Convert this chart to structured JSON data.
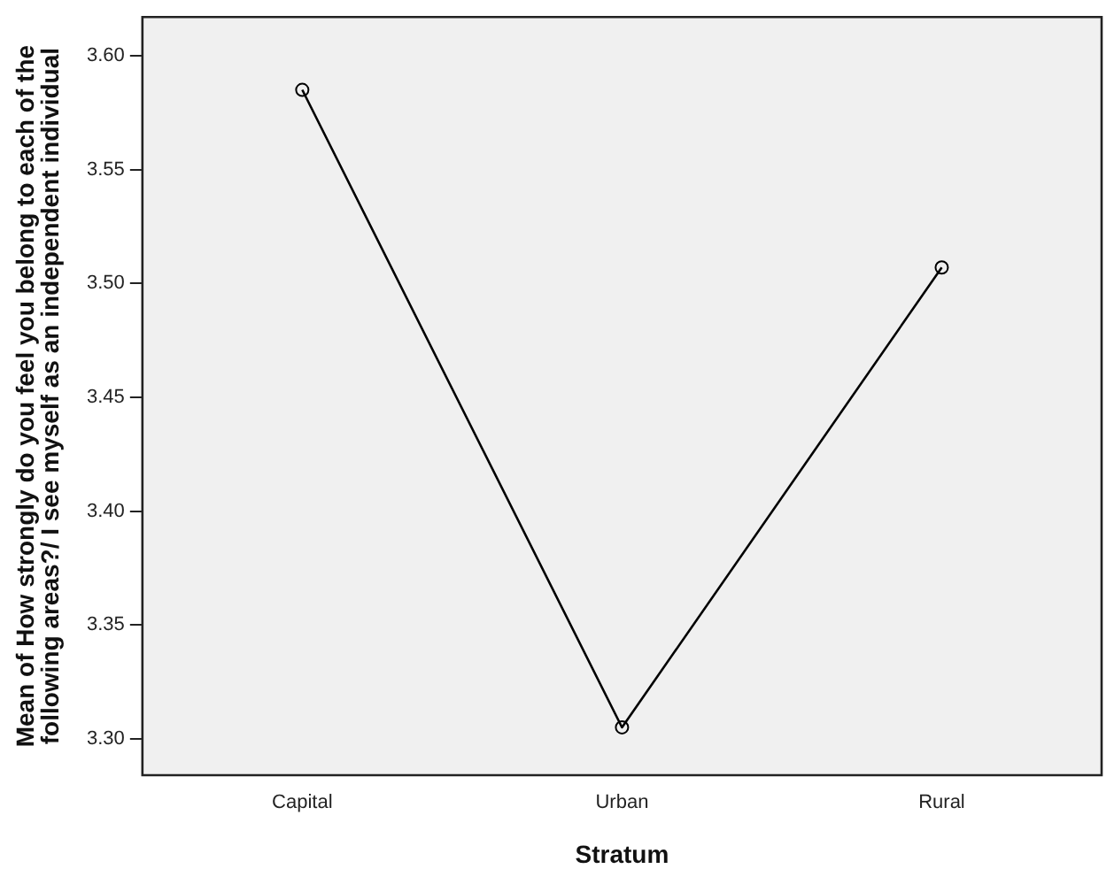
{
  "chart_data": {
    "type": "line",
    "xlabel": "Stratum",
    "ylabel": "Mean of How strongly do you feel you belong to each of the following areas?/ I see myself as an independent individual",
    "categories": [
      "Capital",
      "Urban",
      "Rural"
    ],
    "series": [
      {
        "color": "#000000",
        "values": [
          3.585,
          3.305,
          3.507
        ]
      }
    ],
    "ylim": [
      3.284,
      3.617
    ],
    "yticks": [
      {
        "value": 3.3,
        "label": "3.30"
      },
      {
        "value": 3.35,
        "label": "3.35"
      },
      {
        "value": 3.4,
        "label": "3.40"
      },
      {
        "value": 3.45,
        "label": "3.45"
      },
      {
        "value": 3.5,
        "label": "3.50"
      },
      {
        "value": 3.55,
        "label": "3.55"
      },
      {
        "value": 3.6,
        "label": "3.60"
      }
    ],
    "marker": "circle",
    "line_style": "solid",
    "grid": false,
    "legend": false
  }
}
